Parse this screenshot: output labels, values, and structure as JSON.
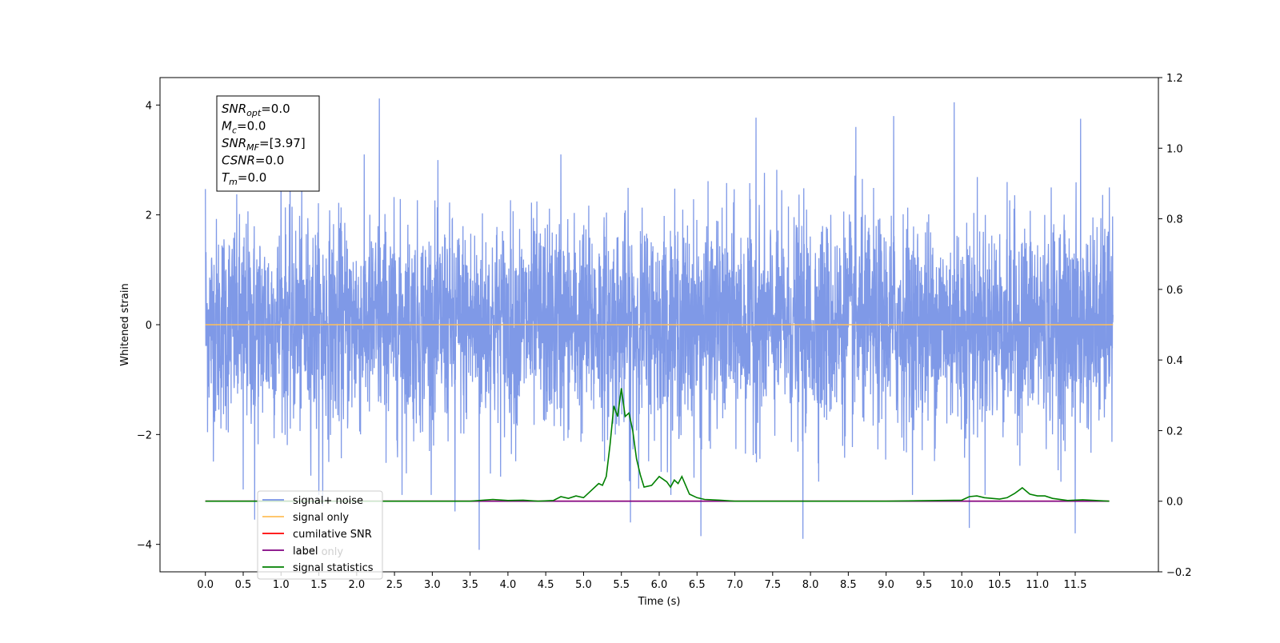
{
  "chart_data": {
    "type": "line",
    "xlabel": "Time (s)",
    "ylabel": "Whitened strain",
    "xlim": [
      -0.6,
      12.6
    ],
    "ylim": [
      -4.5,
      4.5
    ],
    "y2lim": [
      -0.2,
      1.2
    ],
    "x_ticks": [
      "0.0",
      "0.5",
      "1.0",
      "1.5",
      "2.0",
      "2.5",
      "3.0",
      "3.5",
      "4.0",
      "4.5",
      "5.0",
      "5.5",
      "6.0",
      "6.5",
      "7.0",
      "7.5",
      "8.0",
      "8.5",
      "9.0",
      "9.5",
      "10.0",
      "10.5",
      "11.0",
      "11.5"
    ],
    "y_ticks": [
      "4",
      "2",
      "0",
      "−2",
      "−4"
    ],
    "y2_ticks": [
      "1.2",
      "1.0",
      "0.8",
      "0.6",
      "0.4",
      "0.2",
      "0.0",
      "−0.2"
    ],
    "annotation": [
      {
        "base": "SNR",
        "sub": "opt",
        "rest": "=0.0"
      },
      {
        "base": "M",
        "sub": "c",
        "rest": "=0.0"
      },
      {
        "base": "SNR",
        "sub": "MF",
        "rest": "=[3.97]"
      },
      {
        "base": "CSNR",
        "sub": "",
        "rest": "=0.0"
      },
      {
        "base": "T",
        "sub": "m",
        "rest": "=0.0"
      }
    ],
    "legend_position": "lower-left",
    "legend": [
      {
        "label": "signal+ noise",
        "color": "#7893e6"
      },
      {
        "label": "signal only",
        "color": "#ffbf5a"
      },
      {
        "label": "cumilative SNR",
        "color": "#ff0000"
      },
      {
        "label": "label",
        "color": "#800080"
      },
      {
        "label": "signal statistics",
        "color": "#008000"
      }
    ],
    "hidden_legend_text": "label only",
    "series": [
      {
        "name": "signal+ noise",
        "axis": "left",
        "color": "#7893e6",
        "x_range": [
          0.0,
          12.0
        ],
        "envelope_typical": 2.2,
        "peaks": [
          [
            0.0,
            2.47
          ],
          [
            0.5,
            -3.0
          ],
          [
            0.65,
            -3.55
          ],
          [
            1.0,
            2.7
          ],
          [
            1.55,
            -3.3
          ],
          [
            2.3,
            4.12
          ],
          [
            2.6,
            -3.1
          ],
          [
            3.3,
            -3.4
          ],
          [
            3.62,
            -4.1
          ],
          [
            4.7,
            3.1
          ],
          [
            5.62,
            -3.6
          ],
          [
            6.55,
            -3.85
          ],
          [
            7.28,
            3.77
          ],
          [
            7.9,
            -3.9
          ],
          [
            8.6,
            3.6
          ],
          [
            9.1,
            3.8
          ],
          [
            9.9,
            4.05
          ],
          [
            10.1,
            -3.7
          ],
          [
            11.5,
            -3.8
          ],
          [
            11.57,
            3.75
          ],
          [
            11.95,
            2.5
          ]
        ]
      },
      {
        "name": "signal only",
        "axis": "left",
        "color": "#ffbf5a",
        "x": [
          0.0,
          12.0
        ],
        "y": [
          0.0,
          0.0
        ]
      },
      {
        "name": "cumilative SNR",
        "axis": "right",
        "color": "#ff0000",
        "x": [
          0.0,
          11.95
        ],
        "y": [
          0.0,
          0.0
        ]
      },
      {
        "name": "label",
        "axis": "right",
        "color": "#800080",
        "x": [
          0.0,
          11.95
        ],
        "y": [
          0.0,
          0.0
        ]
      },
      {
        "name": "signal statistics",
        "axis": "right",
        "color": "#008000",
        "x": [
          0.0,
          3.5,
          3.8,
          4.0,
          4.2,
          4.4,
          4.6,
          4.7,
          4.8,
          4.9,
          5.0,
          5.1,
          5.2,
          5.25,
          5.3,
          5.35,
          5.4,
          5.45,
          5.5,
          5.55,
          5.6,
          5.65,
          5.7,
          5.75,
          5.8,
          5.9,
          6.0,
          6.1,
          6.15,
          6.2,
          6.25,
          6.3,
          6.4,
          6.5,
          6.6,
          6.8,
          7.0,
          8.0,
          9.0,
          10.0,
          10.1,
          10.2,
          10.3,
          10.5,
          10.6,
          10.7,
          10.75,
          10.8,
          10.9,
          11.0,
          11.1,
          11.2,
          11.4,
          11.6,
          11.95
        ],
        "y": [
          0.0,
          0.0,
          0.005,
          0.002,
          0.003,
          0.0,
          0.002,
          0.013,
          0.008,
          0.015,
          0.01,
          0.03,
          0.05,
          0.045,
          0.07,
          0.16,
          0.27,
          0.24,
          0.32,
          0.24,
          0.25,
          0.2,
          0.12,
          0.075,
          0.04,
          0.045,
          0.07,
          0.055,
          0.04,
          0.06,
          0.05,
          0.07,
          0.02,
          0.01,
          0.005,
          0.003,
          0.0,
          0.0,
          0.0,
          0.003,
          0.013,
          0.015,
          0.01,
          0.006,
          0.01,
          0.022,
          0.03,
          0.038,
          0.02,
          0.015,
          0.015,
          0.008,
          0.002,
          0.004,
          0.0
        ]
      }
    ]
  }
}
